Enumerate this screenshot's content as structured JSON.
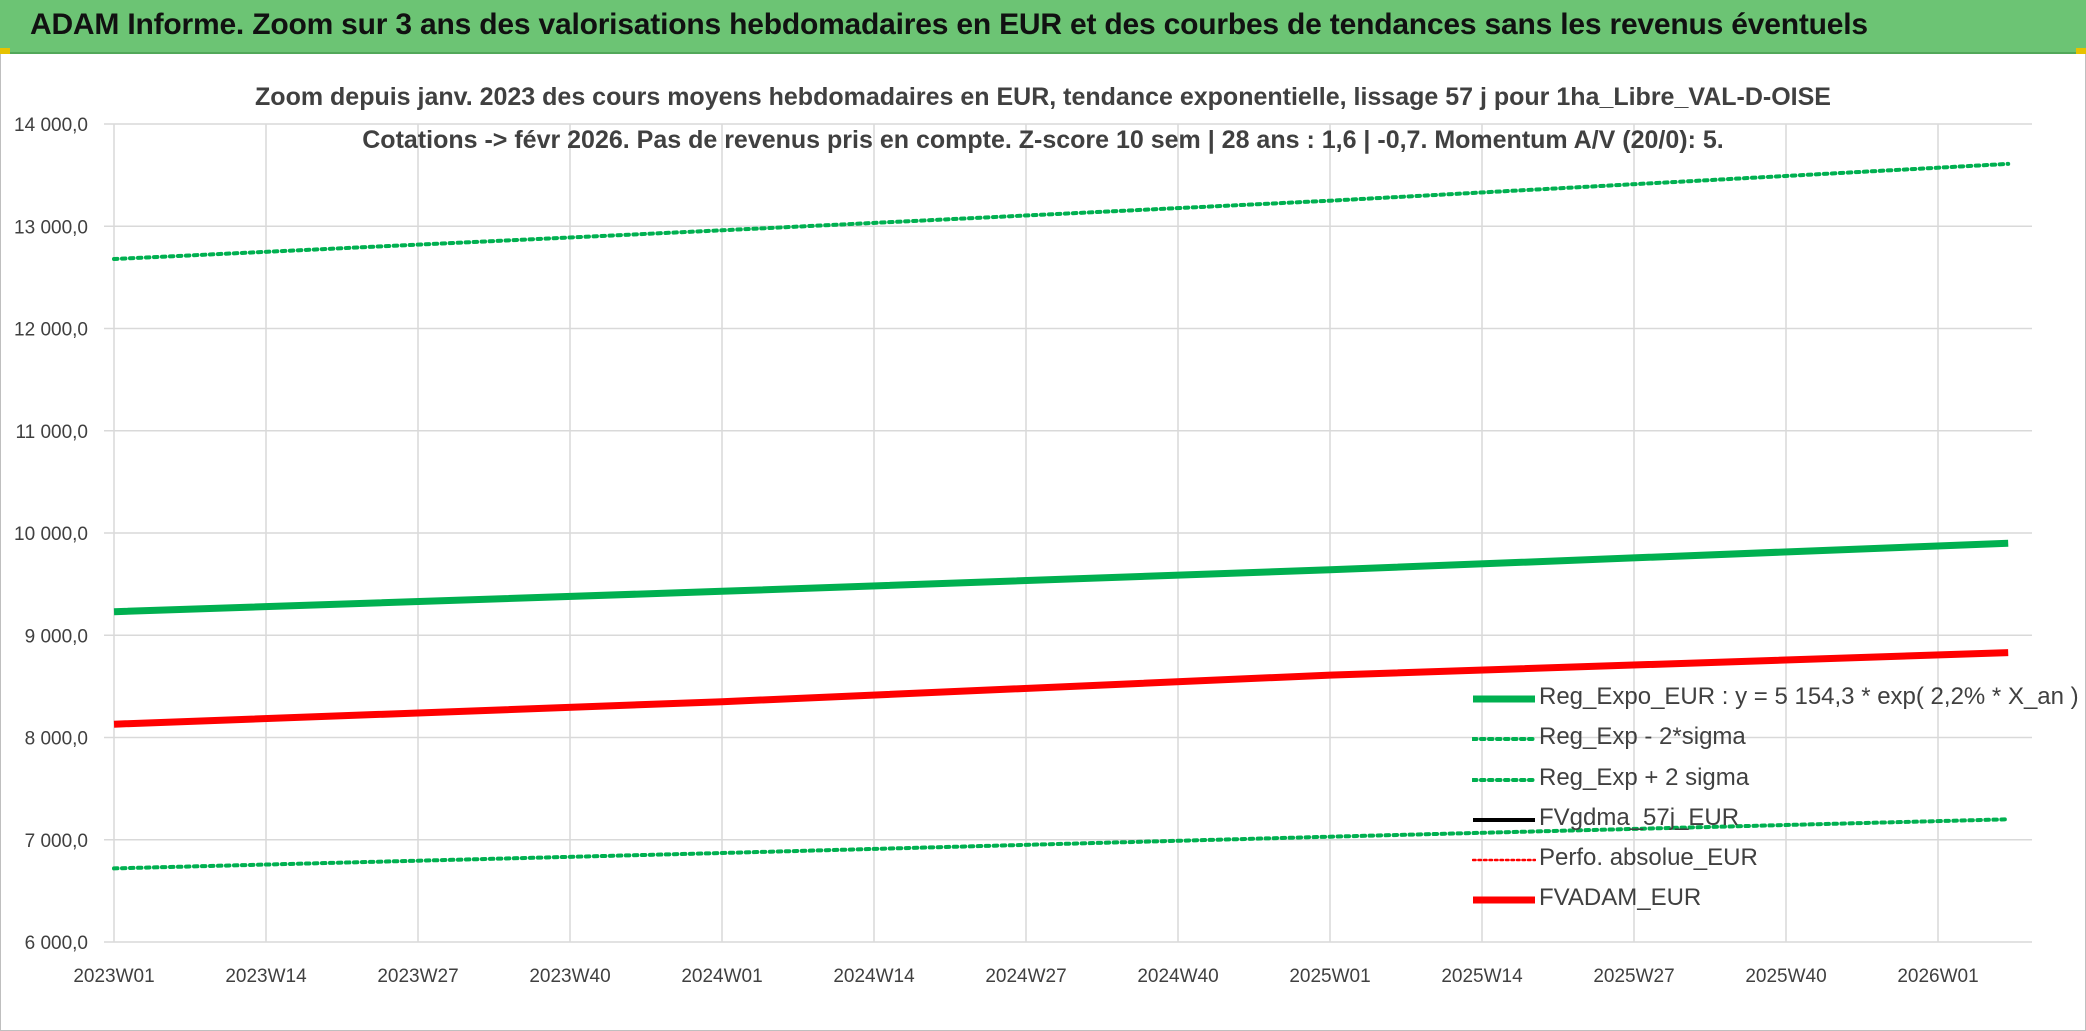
{
  "banner": {
    "title": "ADAM Informe. Zoom sur 3 ans des valorisations hebdomadaires en EUR et des courbes de tendances sans les revenus éventuels"
  },
  "colors": {
    "banner": "#6cc474",
    "green": "#00b050",
    "red": "#ff0000",
    "black": "#000000",
    "grid": "#d9d9d9"
  },
  "chart_data": {
    "type": "line",
    "title": "Zoom depuis janv. 2023 des cours moyens hebdomadaires en EUR, tendance exponentielle, lissage 57 j pour 1ha_Libre_VAL-D-OISE",
    "subtitle": "Cotations -> févr 2026. Pas de revenus pris en compte. Z-score 10 sem | 28 ans : 1,6 | -0,7. Momentum A/V (20/0): 5.",
    "xlabel": "",
    "ylabel": "",
    "ylim": [
      6000,
      14000
    ],
    "y_ticks": [
      "6 000,0",
      "7 000,0",
      "8 000,0",
      "9 000,0",
      "10 000,0",
      "11 000,0",
      "12 000,0",
      "13 000,0",
      "14 000,0"
    ],
    "x_ticks": [
      "2023W01",
      "2023W14",
      "2023W27",
      "2023W40",
      "2024W01",
      "2024W14",
      "2024W27",
      "2024W40",
      "2025W01",
      "2025W14",
      "2025W27",
      "2025W40",
      "2026W01"
    ],
    "grid": true,
    "legend_position": "bottom-right",
    "series": [
      {
        "name": "Reg_Expo_EUR : y = 5 154,3 * exp( 2,2% *  X_an )",
        "color": "#00b050",
        "style": "solid",
        "width": "thick",
        "points": [
          [
            "2023W01",
            9230
          ],
          [
            "2024W01",
            9430
          ],
          [
            "2025W01",
            9640
          ],
          [
            "2026W07",
            9900
          ]
        ]
      },
      {
        "name": "Reg_Exp - 2*sigma",
        "color": "#00b050",
        "style": "dotted",
        "width": "medium",
        "points": [
          [
            "2023W01",
            6720
          ],
          [
            "2024W01",
            6870
          ],
          [
            "2025W01",
            7030
          ],
          [
            "2026W07",
            7200
          ]
        ]
      },
      {
        "name": "Reg_Exp + 2 sigma",
        "color": "#00b050",
        "style": "dotted",
        "width": "medium",
        "points": [
          [
            "2023W01",
            12680
          ],
          [
            "2024W01",
            12960
          ],
          [
            "2025W01",
            13250
          ],
          [
            "2026W07",
            13610
          ]
        ]
      },
      {
        "name": "FVgdma_57j_EUR",
        "color": "#000000",
        "style": "solid",
        "width": "medium",
        "points": []
      },
      {
        "name": "Perfo. absolue_EUR",
        "color": "#ff0000",
        "style": "dotted",
        "width": "thin",
        "points": []
      },
      {
        "name": "FVADAM_EUR",
        "color": "#ff0000",
        "style": "solid",
        "width": "thick",
        "points": [
          [
            "2023W01",
            8130
          ],
          [
            "2024W01",
            8350
          ],
          [
            "2025W01",
            8610
          ],
          [
            "2026W07",
            8830
          ]
        ]
      }
    ]
  }
}
